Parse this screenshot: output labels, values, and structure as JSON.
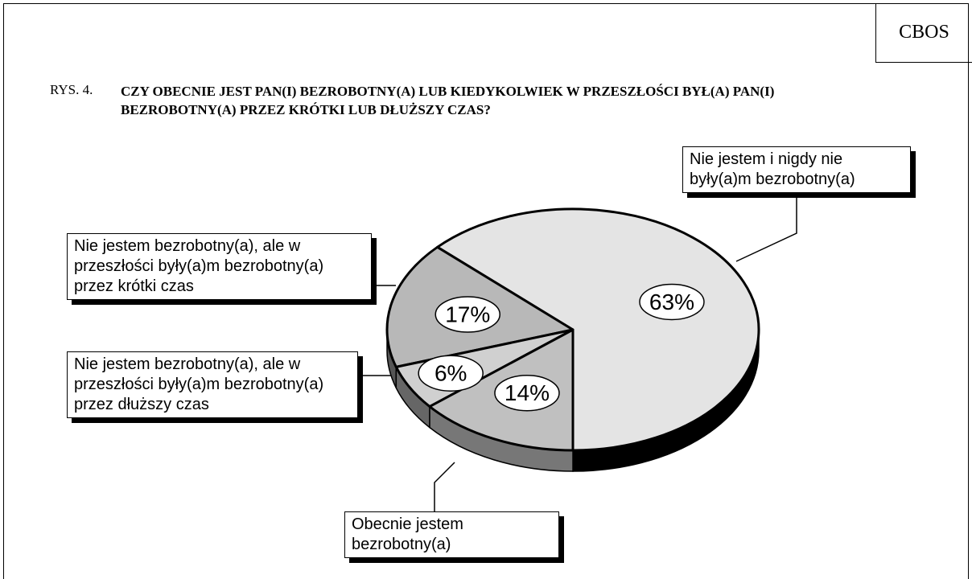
{
  "header": {
    "source": "CBOS",
    "figure": "RYS. 4."
  },
  "chart_data": {
    "type": "pie",
    "title": "CZY OBECNIE JEST PAN(I) BEZROBOTNY(A) LUB KIEDYKOLWIEK W PRZESZŁOŚCI BYŁ(A) PAN(I) BEZROBOTNY(A) PRZEZ KRÓTKI LUB DŁUŻSZY CZAS?",
    "categories": [
      "Nie jestem i nigdy nie były(a)m bezrobotny(a)",
      "Nie jestem bezrobotny(a), ale w przeszłości były(a)m bezrobotny(a) przez krótki czas",
      "Nie jestem bezrobotny(a), ale w przeszłości były(a)m bezrobotny(a) przez dłuższy czas",
      "Obecnie jestem bezrobotny(a)"
    ],
    "values": [
      63,
      17,
      6,
      14
    ],
    "value_labels": [
      "63%",
      "17%",
      "6%",
      "14%"
    ],
    "colors": [
      "#e4e4e4",
      "#b8b8b8",
      "#d0d0d0",
      "#c0c0c0"
    ]
  }
}
